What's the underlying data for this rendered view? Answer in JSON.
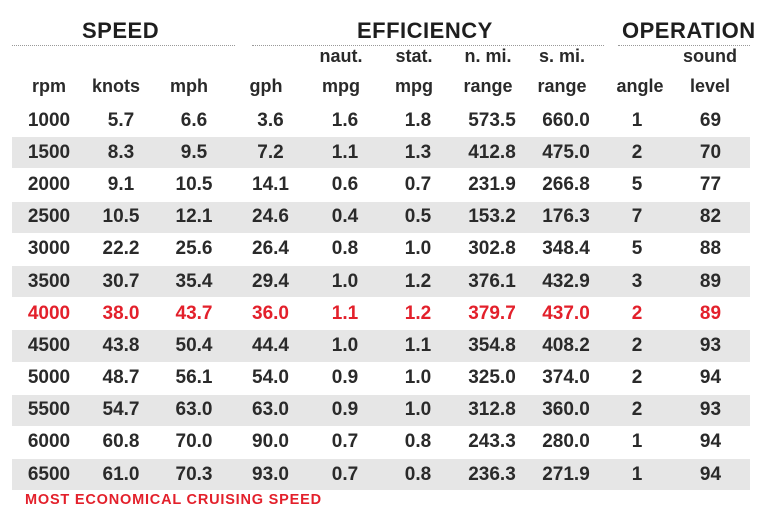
{
  "groups": {
    "speed": "SPEED",
    "efficiency": "EFFICIENCY",
    "operation": "OPERATION"
  },
  "columns": [
    {
      "top": "",
      "bottom": "rpm"
    },
    {
      "top": "",
      "bottom": "knots"
    },
    {
      "top": "",
      "bottom": "mph"
    },
    {
      "top": "",
      "bottom": "gph"
    },
    {
      "top": "naut.",
      "bottom": "mpg"
    },
    {
      "top": "stat.",
      "bottom": "mpg"
    },
    {
      "top": "n. mi.",
      "bottom": "range"
    },
    {
      "top": "s. mi.",
      "bottom": "range"
    },
    {
      "top": "",
      "bottom": "angle"
    },
    {
      "top": "sound",
      "bottom": "level"
    }
  ],
  "chart_data": {
    "type": "table",
    "columns": [
      "rpm",
      "knots",
      "mph",
      "gph",
      "naut. mpg",
      "stat. mpg",
      "n. mi. range",
      "s. mi. range",
      "angle",
      "sound level"
    ],
    "rows": [
      [
        "1000",
        "5.7",
        "6.6",
        "3.6",
        "1.6",
        "1.8",
        "573.5",
        "660.0",
        "1",
        "69"
      ],
      [
        "1500",
        "8.3",
        "9.5",
        "7.2",
        "1.1",
        "1.3",
        "412.8",
        "475.0",
        "2",
        "70"
      ],
      [
        "2000",
        "9.1",
        "10.5",
        "14.1",
        "0.6",
        "0.7",
        "231.9",
        "266.8",
        "5",
        "77"
      ],
      [
        "2500",
        "10.5",
        "12.1",
        "24.6",
        "0.4",
        "0.5",
        "153.2",
        "176.3",
        "7",
        "82"
      ],
      [
        "3000",
        "22.2",
        "25.6",
        "26.4",
        "0.8",
        "1.0",
        "302.8",
        "348.4",
        "5",
        "88"
      ],
      [
        "3500",
        "30.7",
        "35.4",
        "29.4",
        "1.0",
        "1.2",
        "376.1",
        "432.9",
        "3",
        "89"
      ],
      [
        "4000",
        "38.0",
        "43.7",
        "36.0",
        "1.1",
        "1.2",
        "379.7",
        "437.0",
        "2",
        "89"
      ],
      [
        "4500",
        "43.8",
        "50.4",
        "44.4",
        "1.0",
        "1.1",
        "354.8",
        "408.2",
        "2",
        "93"
      ],
      [
        "5000",
        "48.7",
        "56.1",
        "54.0",
        "0.9",
        "1.0",
        "325.0",
        "374.0",
        "2",
        "94"
      ],
      [
        "5500",
        "54.7",
        "63.0",
        "63.0",
        "0.9",
        "1.0",
        "312.8",
        "360.0",
        "2",
        "93"
      ],
      [
        "6000",
        "60.8",
        "70.0",
        "90.0",
        "0.7",
        "0.8",
        "243.3",
        "280.0",
        "1",
        "94"
      ],
      [
        "6500",
        "61.0",
        "70.3",
        "93.0",
        "0.7",
        "0.8",
        "236.3",
        "271.9",
        "1",
        "94"
      ]
    ],
    "highlight_row": 6,
    "highlight_color": "#e3202b",
    "stripe_color": "#e6e6e6"
  },
  "footnote": "MOST ECONOMICAL CRUISING SPEED"
}
